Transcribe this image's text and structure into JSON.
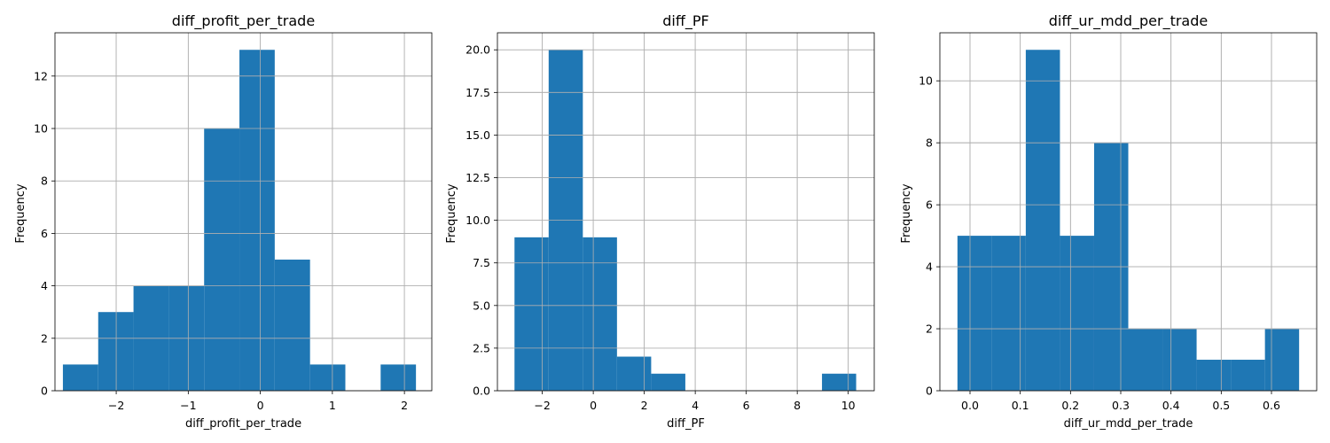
{
  "chart_data": [
    {
      "type": "bar",
      "title": "diff_profit_per_trade",
      "xlabel": "diff_profit_per_trade",
      "ylabel": "Frequency",
      "xlim": [
        -2.85,
        2.38
      ],
      "ylim": [
        0,
        13.65
      ],
      "xticks": [
        -2,
        -1,
        0,
        1,
        2
      ],
      "yticks": [
        0,
        2,
        4,
        6,
        8,
        10,
        12
      ],
      "ytick_labels": [
        "0",
        "2",
        "4",
        "6",
        "8",
        "10",
        "12"
      ],
      "bins": [
        -2.74,
        -2.25,
        -1.76,
        -1.27,
        -0.78,
        -0.29,
        0.2,
        0.69,
        1.18,
        1.67,
        2.16
      ],
      "counts": [
        1,
        3,
        4,
        4,
        10,
        13,
        5,
        1,
        0,
        1
      ],
      "color": "#1f77b4",
      "grid": true
    },
    {
      "type": "bar",
      "title": "diff_PF",
      "xlabel": "diff_PF",
      "ylabel": "Frequency",
      "xlim": [
        -3.76,
        11.02
      ],
      "ylim": [
        0,
        21
      ],
      "xticks": [
        -2,
        0,
        2,
        4,
        6,
        8,
        10
      ],
      "yticks": [
        0,
        2.5,
        5,
        7.5,
        10,
        12.5,
        15,
        17.5,
        20
      ],
      "ytick_labels": [
        "0.0",
        "2.5",
        "5.0",
        "7.5",
        "10.0",
        "12.5",
        "15.0",
        "17.5",
        "20.0"
      ],
      "bins": [
        -3.09,
        -1.75,
        -0.41,
        0.93,
        2.27,
        3.61,
        4.95,
        6.29,
        7.63,
        8.97,
        10.31
      ],
      "counts": [
        9,
        20,
        9,
        2,
        1,
        0,
        0,
        0,
        0,
        1
      ],
      "color": "#1f77b4",
      "grid": true
    },
    {
      "type": "bar",
      "title": "diff_ur_mdd_per_trade",
      "xlabel": "diff_ur_mdd_per_trade",
      "ylabel": "Frequency",
      "xlim": [
        -0.06,
        0.69
      ],
      "ylim": [
        0,
        11.55
      ],
      "xticks": [
        0.0,
        0.1,
        0.2,
        0.3,
        0.4,
        0.5,
        0.6
      ],
      "xtick_labels": [
        "0.0",
        "0.1",
        "0.2",
        "0.3",
        "0.4",
        "0.5",
        "0.6"
      ],
      "yticks": [
        0,
        2,
        4,
        6,
        8,
        10
      ],
      "ytick_labels": [
        "0",
        "2",
        "4",
        "6",
        "8",
        "10"
      ],
      "bins": [
        -0.025,
        0.043,
        0.111,
        0.179,
        0.247,
        0.315,
        0.383,
        0.451,
        0.519,
        0.587,
        0.655
      ],
      "counts": [
        5,
        5,
        11,
        5,
        8,
        2,
        2,
        1,
        1,
        2
      ],
      "color": "#1f77b4",
      "grid": true
    }
  ]
}
